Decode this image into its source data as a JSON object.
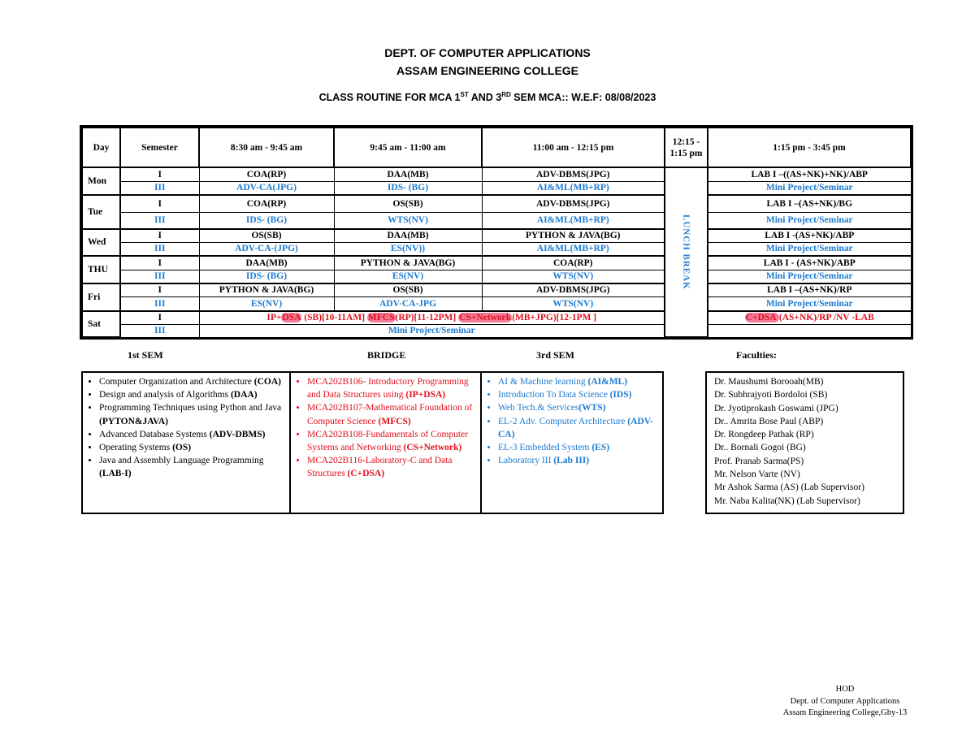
{
  "header": {
    "dept": "DEPT. OF COMPUTER APPLICATIONS",
    "college": "ASSAM ENGINEERING COLLEGE",
    "routine_pre": "CLASS ROUTINE FOR MCA  1",
    "sup1": "ST",
    "routine_mid": " AND 3",
    "sup2": "RD",
    "routine_post": " SEM MCA:: W.E.F: 08/08/2023"
  },
  "routine": {
    "columns": [
      "Day",
      "Semester",
      "8:30 am - 9:45 am",
      "9:45 am - 11:00 am",
      "11:00 am - 12:15 pm",
      "12:15 - 1:15 pm",
      "1:15 pm - 3:45 pm"
    ],
    "lunch_label": "LUNCH BREAK",
    "days": [
      {
        "day": "Mon",
        "rows": [
          {
            "sem": "I",
            "slots": [
              "COA(RP)",
              "DAA(MB)",
              "ADV-DBMS(JPG)",
              "LAB I –((AS+NK)+NK)/ABP"
            ]
          },
          {
            "sem": "III",
            "slots": [
              "ADV-CA(JPG)",
              "IDS- (BG)",
              "AI&ML(MB+RP)",
              "Mini Project/Seminar"
            ]
          }
        ]
      },
      {
        "day": "Tue",
        "rows": [
          {
            "sem": "I",
            "slots": [
              "COA(RP)",
              "OS(SB)",
              "ADV-DBMS(JPG)",
              "LAB I –(AS+NK)/BG"
            ]
          },
          {
            "sem": "III",
            "slots": [
              "IDS- (BG)",
              "WTS(NV)",
              "AI&ML(MB+RP)",
              "Mini Project/Seminar"
            ]
          }
        ]
      },
      {
        "day": "Wed",
        "rows": [
          {
            "sem": "I",
            "slots": [
              "OS(SB)",
              "DAA(MB)",
              "PYTHON & JAVA(BG)",
              "LAB I -(AS+NK)/ABP"
            ]
          },
          {
            "sem": "III",
            "slots": [
              "ADV-CA-(JPG)",
              "ES(NV))",
              "AI&ML(MB+RP)",
              "Mini Project/Seminar"
            ]
          }
        ]
      },
      {
        "day": "THU",
        "rows": [
          {
            "sem": "I",
            "slots": [
              "DAA(MB)",
              "PYTHON & JAVA(BG)",
              "COA(RP)",
              "LAB I -  (AS+NK)/ABP"
            ]
          },
          {
            "sem": "III",
            "slots": [
              "IDS- (BG)",
              "ES(NV)",
              "WTS(NV)",
              "Mini Project/Seminar"
            ]
          }
        ]
      },
      {
        "day": "Fri",
        "rows": [
          {
            "sem": "I",
            "slots": [
              "PYTHON & JAVA(BG)",
              "OS(SB)",
              "ADV-DBMS(JPG)",
              "LAB I –(AS+NK)/RP"
            ]
          },
          {
            "sem": "III",
            "slots": [
              "ES(NV)",
              "ADV-CA-JPG",
              "WTS(NV)",
              "Mini Project/Seminar"
            ]
          }
        ]
      }
    ],
    "saturday": {
      "day": "Sat",
      "sem1": "I",
      "sem3": "III",
      "sem1_parts": [
        {
          "hl": "IP+",
          "text": ""
        },
        {
          "hl": "DSA",
          "text": " (SB)[10-11AM]  "
        },
        {
          "hl": "MFCS",
          "text": "(RP)[11-12PM]  "
        },
        {
          "hl": "CS+Network",
          "text": "(MB+JPG)[12-1PM ]"
        }
      ],
      "sem1_lab_hl": "C+DSA ",
      "sem1_lab": "(AS+NK)/RP /NV -LAB",
      "sem3_text": "Mini Project/Seminar"
    }
  },
  "syllabus": {
    "sem1_title": "1st SEM",
    "bridge_title": "BRIDGE",
    "sem3_title": "3rd SEM",
    "faculties_title": "Faculties:",
    "sem1": [
      {
        "text": "Computer Organization and Architecture ",
        "abbr": "(COA)"
      },
      {
        "text": "Design and analysis of Algorithms ",
        "abbr": "(DAA)"
      },
      {
        "text": "Programming Techniques using Python and Java ",
        "abbr": "(PYTON&JAVA)"
      },
      {
        "text": "Advanced Database Systems ",
        "abbr": "(ADV-DBMS)"
      },
      {
        "text": "Operating Systems ",
        "abbr": "(OS)"
      },
      {
        "text": "Java and Assembly Language Programming ",
        "abbr": "(LAB-I)"
      }
    ],
    "bridge": [
      {
        "text": "MCA202B106- Introductory Programming  and Data Structures using ",
        "abbr": "(IP+DSA)"
      },
      {
        "text": "MCA202B107-Mathematical Foundation of Computer Science ",
        "abbr": "(MFCS)"
      },
      {
        "text": "MCA202B108-Fundamentals of Computer Systems and Networking ",
        "abbr": "(CS+Network)"
      },
      {
        "text": "MCA202B116-Laboratory-C and Data Structures  ",
        "abbr": "(C+DSA)"
      }
    ],
    "sem3": [
      {
        "text": "AI & Machine learning ",
        "abbr": "(AI&ML)"
      },
      {
        "text": "Introduction To Data Science ",
        "abbr": "(IDS)"
      },
      {
        "text": "Web Tech.& Services",
        "abbr": "(WTS)"
      },
      {
        "text": "EL-2 Adv. Computer Architecture ",
        "abbr": "(ADV-CA)"
      },
      {
        "text": "EL-3 Embedded System ",
        "abbr": "(ES)"
      },
      {
        "text": " Laboratory III ",
        "abbr": "(Lab III)"
      }
    ],
    "faculties": [
      "Dr. Maushumi Borooah(MB)",
      "Dr. Subhrajyoti Bordoloi (SB)",
      "Dr. Jyotiprokash Goswami (JPG)",
      "Dr.. Amrita Bose Paul (ABP)",
      "Dr. Rongdeep Pathak (RP)",
      "Dr.. Bornali Gogoi (BG)",
      "Prof. Pranab Sarma(PS)",
      "Mr. Nelson Varte (NV)",
      "Mr Ashok Sarma (AS) (Lab Supervisor)",
      "Mr. Naba Kalita(NK) (Lab Supervisor)"
    ]
  },
  "footer": {
    "hod": "HOD",
    "dept": "Dept. of Computer Applications",
    "college": "Assam Engineering College,Ghy-13"
  },
  "colors": {
    "sem3_blue": "#1c7ad0",
    "bridge_red": "#e0101c",
    "highlight_pink": "#f47a9a"
  }
}
